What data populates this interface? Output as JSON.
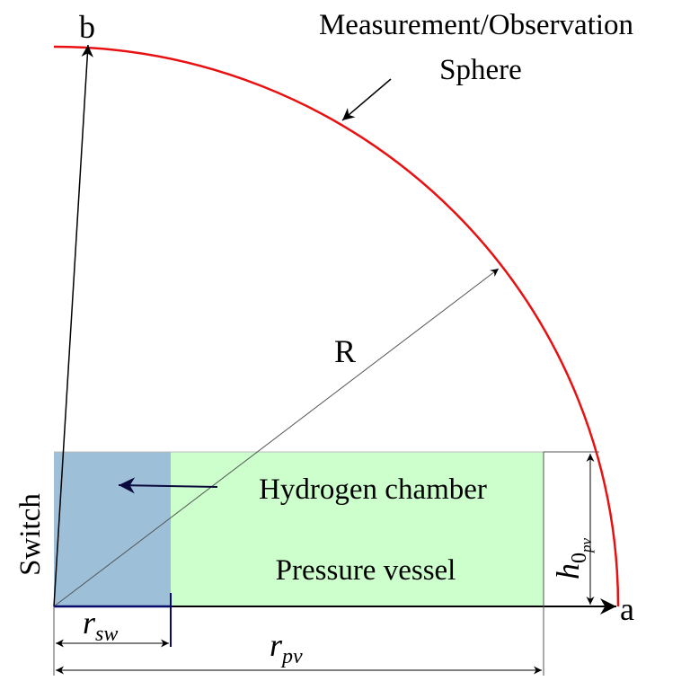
{
  "labels": {
    "b": "b",
    "a": "a",
    "sphere_line1": "Measurement/Observation",
    "sphere_line2": "Sphere",
    "radius": "R",
    "hydrogen_chamber": "Hydrogen chamber",
    "pressure_vessel": "Pressure vessel",
    "switch": "Switch"
  },
  "dimensions": {
    "r_sw": {
      "symbol": "r",
      "subscript": "sw"
    },
    "r_pv": {
      "symbol": "r",
      "subscript": "pv"
    },
    "h_0pv": {
      "symbol": "h",
      "subscript": "0",
      "subsubscript": "pv"
    }
  }
}
